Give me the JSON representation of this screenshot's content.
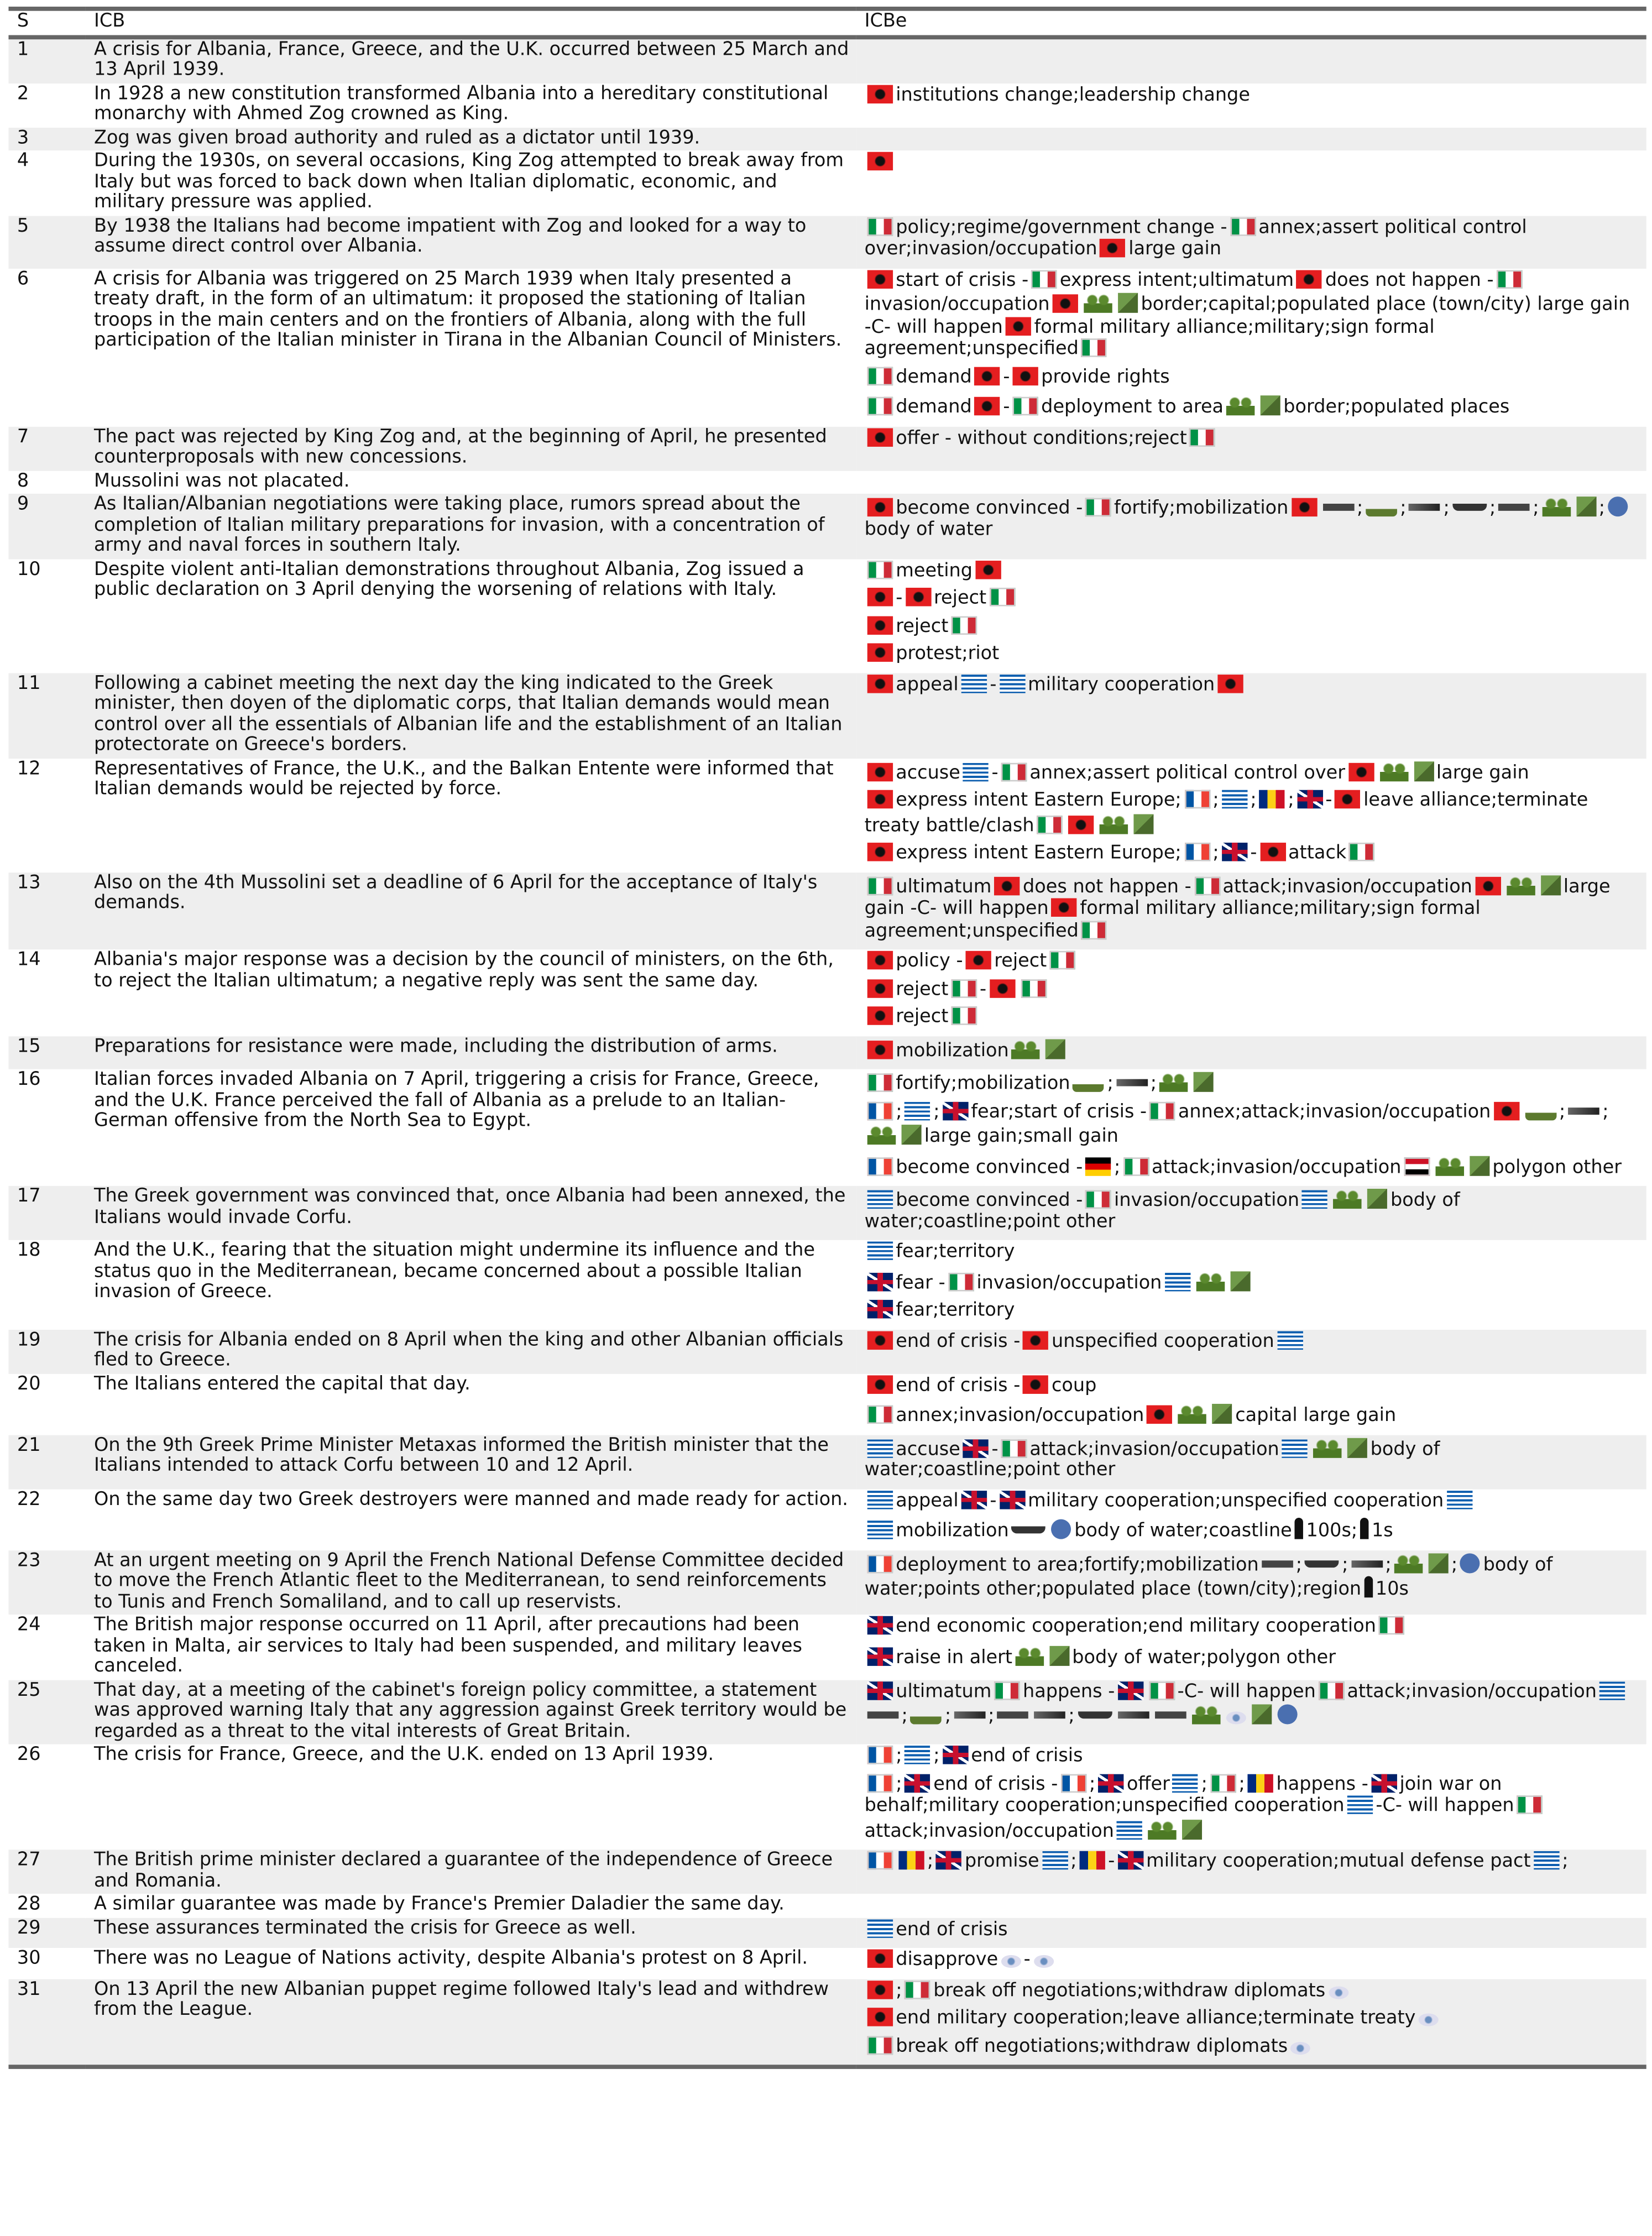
{
  "header": [
    "S",
    "ICB",
    "ICBe"
  ],
  "rows": [
    {
      "s": "1",
      "icb": "A crisis for Albania, France, Greece, and the U.K. occurred between 25 March and 13 April 1939.",
      "icbe": []
    },
    {
      "s": "2",
      "icb": "In 1928 a new constitution transformed Albania into a hereditary constitutional monarchy with Ahmed Zog crowned as King.",
      "icbe": [
        [
          "institutions change;leadership change"
        ]
      ]
    },
    {
      "s": "3",
      "icb": "Zog was given broad authority and ruled as a dictator until 1939.",
      "icbe": []
    },
    {
      "s": "4",
      "icb": "During the 1930s, on several occasions, King Zog attempted to break away from Italy but was forced to back down when Italian diplomatic, economic, and military pressure was applied.",
      "icbe": [
        []
      ]
    },
    {
      "s": "5",
      "icb": "By 1938 the Italians had become impatient with Zog and looked for a way to assume direct control over Albania.",
      "icbe": [
        [
          "policy;regime/government change -",
          "annex;assert political control over;invasion/occupation",
          "large gain"
        ]
      ]
    },
    {
      "s": "6",
      "icb": "A crisis for Albania was triggered on 25 March 1939 when Italy presented a treaty draft, in the form of an ultimatum: it proposed the stationing of Italian troops in the main centers and on the frontiers of Albania, along with the full participation of the Italian minister in Tirana in the Albanian Council of Ministers.",
      "icbe": [
        [
          "start of crisis -",
          "express intent;ultimatum",
          "does not happen -",
          "invasion/occupation",
          "border;capital;populated place (town/city) large gain -C- will happen",
          "formal military alliance;military;sign formal agreement;unspecified"
        ],
        [
          "demand",
          "-",
          "provide rights"
        ],
        [
          "demand",
          "-",
          "deployment to area",
          "border;populated places"
        ]
      ]
    },
    {
      "s": "7",
      "icb": "The pact was rejected by King Zog and, at the beginning of April, he presented counterproposals with new concessions.",
      "icbe": [
        [
          "offer - without conditions;reject"
        ]
      ]
    },
    {
      "s": "8",
      "icb": "Mussolini was not placated.",
      "icbe": []
    },
    {
      "s": "9",
      "icb": "As Italian/Albanian negotiations were taking place, rumors spread about the completion of Italian military preparations for invasion, with a concentration of army and naval forces in southern Italy.",
      "icbe": [
        [
          "become convinced -",
          "fortify;mobilization",
          ";",
          ";",
          ";",
          ";",
          ";",
          ";",
          "body of water"
        ]
      ]
    },
    {
      "s": "10",
      "icb": "Despite violent anti-Italian demonstrations throughout Albania, Zog issued a public declaration on 3 April denying the worsening of relations with Italy.",
      "icbe": [
        [
          "meeting"
        ],
        [
          "-",
          "reject"
        ],
        [
          "reject"
        ],
        [
          "protest;riot"
        ]
      ]
    },
    {
      "s": "11",
      "icb": "Following a cabinet meeting the next day the king indicated to the Greek minister, then doyen of the diplomatic corps, that Italian demands would mean control over all the essentials of Albanian life and the establishment of an Italian protectorate on Greece's borders.",
      "icbe": [
        [
          "appeal",
          "-",
          "military cooperation"
        ]
      ]
    },
    {
      "s": "12",
      "icb": "Representatives of France, the U.K., and the Balkan Entente were informed that Italian demands would be rejected by force.",
      "icbe": [
        [
          "accuse",
          "-",
          "annex;assert political control over",
          "large gain"
        ],
        [
          "express intent Eastern Europe;",
          ";",
          ";",
          ";",
          "-",
          "leave alliance;terminate treaty battle/clash"
        ],
        [
          "express intent Eastern Europe;",
          ";",
          "-",
          "attack"
        ]
      ]
    },
    {
      "s": "13",
      "icb": "Also on the 4th Mussolini set a deadline of 6 April for the acceptance of Italy's demands.",
      "icbe": [
        [
          "ultimatum",
          "does not happen -",
          "attack;invasion/occupation",
          "large gain -C- will happen",
          "formal military alliance;military;sign formal agreement;unspecified"
        ]
      ]
    },
    {
      "s": "14",
      "icb": "Albania's major response was a decision by the council of ministers, on the 6th, to reject the Italian ultimatum; a negative reply was sent the same day.",
      "icbe": [
        [
          "policy -",
          "reject"
        ],
        [
          "reject",
          "-"
        ],
        [
          "reject"
        ]
      ]
    },
    {
      "s": "15",
      "icb": "Preparations for resistance were made, including the distribution of arms.",
      "icbe": [
        [
          "mobilization"
        ]
      ]
    },
    {
      "s": "16",
      "icb": "Italian forces invaded Albania on 7 April, triggering a crisis for France, Greece, and the U.K. France perceived the fall of Albania as a prelude to an Italian-German offensive from the North Sea to Egypt.",
      "icbe": [
        [
          "fortify;mobilization",
          ";",
          ";"
        ],
        [
          ";",
          ";",
          "fear;start of crisis -",
          "annex;attack;invasion/occupation",
          ";",
          ";",
          "large gain;small gain"
        ],
        [
          "become convinced -",
          ";",
          "attack;invasion/occupation",
          "polygon other"
        ]
      ]
    },
    {
      "s": "17",
      "icb": "The Greek government was convinced that, once Albania had been annexed, the Italians would invade Corfu.",
      "icbe": [
        [
          "become convinced -",
          "invasion/occupation",
          "body of water;coastline;point other"
        ]
      ]
    },
    {
      "s": "18",
      "icb": "And the U.K., fearing that the situation might undermine its influence and the status quo in the Mediterranean, became concerned about a possible Italian invasion of Greece.",
      "icbe": [
        [
          "fear;territory"
        ],
        [
          "fear -",
          "invasion/occupation"
        ],
        [
          "fear;territory"
        ]
      ]
    },
    {
      "s": "19",
      "icb": "The crisis for Albania ended on 8 April when the king and other Albanian officials fled to Greece.",
      "icbe": [
        [
          "end of crisis -",
          "unspecified cooperation"
        ]
      ]
    },
    {
      "s": "20",
      "icb": "The Italians entered the capital that day.",
      "icbe": [
        [
          "end of crisis -",
          "coup"
        ],
        [
          "annex;invasion/occupation",
          "capital large gain"
        ]
      ]
    },
    {
      "s": "21",
      "icb": "On the 9th Greek Prime Minister Metaxas informed the British minister that the Italians intended to attack Corfu between 10 and 12 April.",
      "icbe": [
        [
          "accuse",
          "-",
          "attack;invasion/occupation",
          "body of water;coastline;point other"
        ]
      ]
    },
    {
      "s": "22",
      "icb": "On the same day two Greek destroyers were manned and made ready for action.",
      "icbe": [
        [
          "appeal",
          "-",
          "military cooperation;unspecified cooperation"
        ],
        [
          "mobilization",
          "body of water;coastline",
          "100s;",
          "1s"
        ]
      ]
    },
    {
      "s": "23",
      "icb": "At an urgent meeting on 9 April the French National Defense Committee decided to move the French Atlantic fleet to the Mediterranean, to send reinforcements to Tunis and French Somaliland, and to call up reservists.",
      "icbe": [
        [
          "deployment to area;fortify;mobilization",
          ";",
          ";",
          ";",
          ";",
          "body of water;points other;populated place (town/city);region",
          "10s"
        ]
      ]
    },
    {
      "s": "24",
      "icb": "The British major response occurred on 11 April, after precautions had been taken in Malta, air services to Italy had been suspended, and military leaves canceled.",
      "icbe": [
        [
          "end economic cooperation;end military cooperation"
        ],
        [
          "raise in alert",
          "body of water;polygon other"
        ]
      ]
    },
    {
      "s": "25",
      "icb": "That day, at a meeting of the cabinet's foreign policy committee, a statement was approved warning Italy that any aggression against Greek territory would be regarded as a threat to the vital interests of Great Britain.",
      "icbe": [
        [
          "ultimatum",
          "happens -",
          "-C- will happen",
          "attack;invasion/occupation",
          ";",
          ";",
          ";",
          ";"
        ]
      ]
    },
    {
      "s": "26",
      "icb": "The crisis for France, Greece, and the U.K. ended on 13 April 1939.",
      "icbe": [
        [
          ";",
          ";",
          "end of crisis"
        ],
        [
          ";",
          "end of crisis -",
          ";",
          "offer",
          ";",
          ";",
          "happens -",
          "join war on behalf;military cooperation;unspecified cooperation",
          "-C- will happen",
          "attack;invasion/occupation"
        ]
      ]
    },
    {
      "s": "27",
      "icb": "The British prime minister declared a guarantee of the independence of Greece and Romania.",
      "icbe": [
        [
          ";",
          "promise",
          ";",
          "-",
          "military cooperation;mutual defense pact",
          ";"
        ]
      ]
    },
    {
      "s": "28",
      "icb": "A similar guarantee was made by France's Premier Daladier the same day.",
      "icbe": []
    },
    {
      "s": "29",
      "icb": "These assurances terminated the crisis for Greece as well.",
      "icbe": [
        [
          "end of crisis"
        ]
      ]
    },
    {
      "s": "30",
      "icb": "There was no League of Nations activity, despite Albania's protest on 8 April.",
      "icbe": [
        [
          "disapprove",
          "-"
        ]
      ]
    },
    {
      "s": "31",
      "icb": "On 13 April the new Albanian puppet regime followed Italy's lead and withdrew from the League.",
      "icbe": [
        [
          ";",
          "break off negotiations;withdraw diplomats"
        ],
        [
          "end military cooperation;leave alliance;terminate treaty"
        ],
        [
          "break off negotiations;withdraw diplomats"
        ]
      ]
    }
  ]
}
